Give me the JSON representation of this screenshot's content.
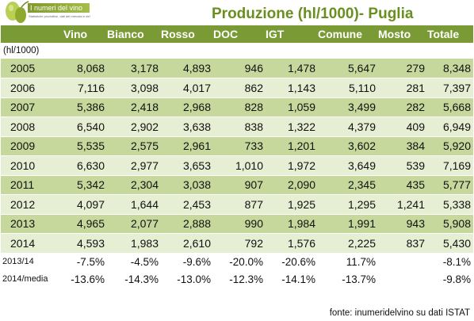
{
  "logo": {
    "title": "I numeri del vino",
    "subtitle": "Statistiche produttive, dati del mercato e del consumo"
  },
  "title": "Produzione (hl/1000)- Puglia",
  "table": {
    "columns": [
      "",
      "Vino",
      "Bianco",
      "Rosso",
      "DOC",
      "IGT",
      "Comune",
      "Mosto",
      "Totale"
    ],
    "unit": "(hl/1000)",
    "rows": [
      [
        "2005",
        "8,068",
        "3,178",
        "4,893",
        "946",
        "1,478",
        "5,647",
        "279",
        "8,348"
      ],
      [
        "2006",
        "7,116",
        "3,098",
        "4,017",
        "862",
        "1,143",
        "5,110",
        "281",
        "7,397"
      ],
      [
        "2007",
        "5,386",
        "2,418",
        "2,968",
        "828",
        "1,059",
        "3,499",
        "282",
        "5,668"
      ],
      [
        "2008",
        "6,540",
        "2,902",
        "3,638",
        "838",
        "1,322",
        "4,379",
        "409",
        "6,949"
      ],
      [
        "2009",
        "5,535",
        "2,575",
        "2,961",
        "733",
        "1,201",
        "3,602",
        "384",
        "5,920"
      ],
      [
        "2010",
        "6,630",
        "2,977",
        "3,653",
        "1,010",
        "1,972",
        "3,649",
        "539",
        "7,169"
      ],
      [
        "2011",
        "5,342",
        "2,304",
        "3,038",
        "907",
        "2,090",
        "2,345",
        "435",
        "5,777"
      ],
      [
        "2012",
        "4,097",
        "1,644",
        "2,453",
        "877",
        "1,925",
        "1,295",
        "1,241",
        "5,338"
      ],
      [
        "2013",
        "4,965",
        "2,077",
        "2,888",
        "990",
        "1,984",
        "1,991",
        "943",
        "5,908"
      ],
      [
        "2014",
        "4,593",
        "1,983",
        "2,610",
        "792",
        "1,576",
        "2,225",
        "837",
        "5,430"
      ]
    ],
    "changes": [
      [
        "2013/14",
        "-7.5%",
        "-4.5%",
        "-9.6%",
        "-20.0%",
        "-20.6%",
        "11.7%",
        "",
        "-8.1%"
      ],
      [
        "2014/media",
        "-13.6%",
        "-14.3%",
        "-13.0%",
        "-12.3%",
        "-14.1%",
        "-13.7%",
        "",
        "-9.8%"
      ]
    ]
  },
  "source": "fonte: inumeridelvino su dati ISTAT",
  "colors": {
    "header_bg": "#7a9a35",
    "row_dark": "#c7d89d",
    "row_light": "#e6eed4",
    "title_green": "#6a8f1f"
  }
}
